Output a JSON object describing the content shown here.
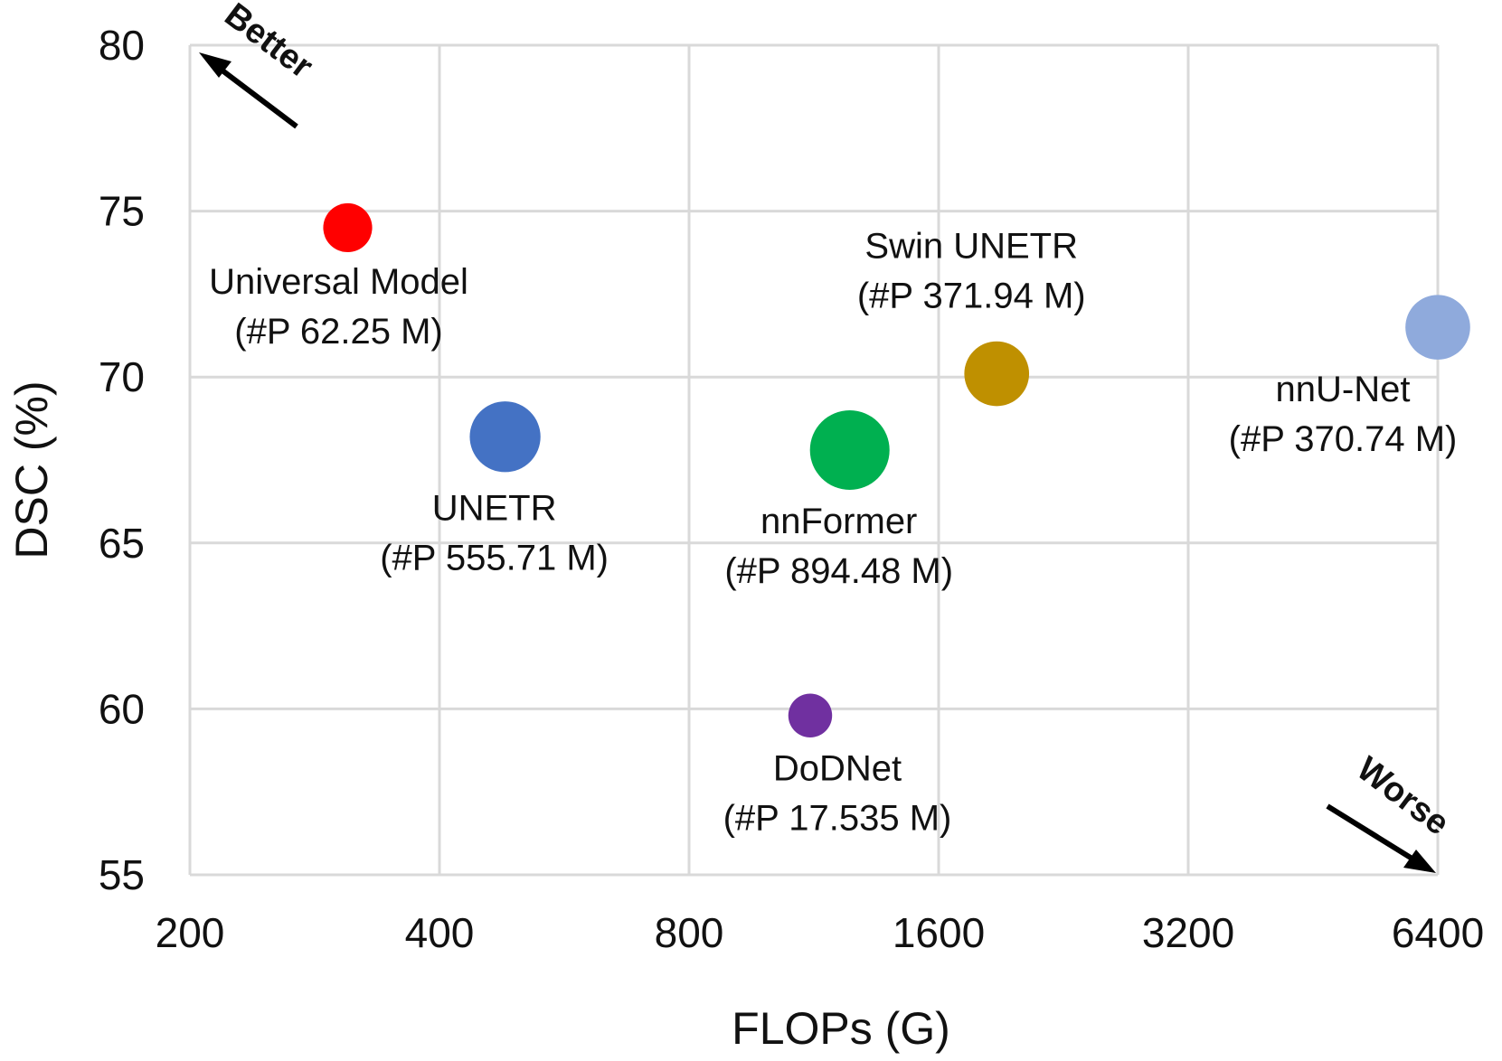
{
  "chart_data": {
    "type": "scatter",
    "title": "",
    "xlabel": "FLOPs (G)",
    "ylabel": "DSC (%)",
    "x_scale": "log2",
    "xlim": [
      200,
      6400
    ],
    "ylim": [
      55,
      80
    ],
    "x_ticks": [
      200,
      400,
      800,
      1600,
      3200,
      6400
    ],
    "y_ticks": [
      55,
      60,
      65,
      70,
      75,
      80
    ],
    "x_tick_labels": [
      "200",
      "400",
      "800",
      "1600",
      "3200",
      "6400"
    ],
    "y_tick_labels": [
      "55",
      "60",
      "65",
      "70",
      "75",
      "80"
    ],
    "grid": true,
    "bubble_size": "parameters (#P)",
    "points": [
      {
        "name": "Universal Model",
        "params": "(#P 62.25 M)",
        "params_m": 62.25,
        "x": 310,
        "y": 74.5,
        "color": "#ff0000"
      },
      {
        "name": "UNETR",
        "params": "(#P 555.71 M)",
        "params_m": 555.71,
        "x": 480,
        "y": 68.2,
        "color": "#4472c4"
      },
      {
        "name": "nnFormer",
        "params": "(#P 894.48 M)",
        "params_m": 894.48,
        "x": 1250,
        "y": 67.8,
        "color": "#00b050"
      },
      {
        "name": "Swin UNETR",
        "params": "(#P 371.94 M)",
        "params_m": 371.94,
        "x": 1880,
        "y": 70.1,
        "color": "#bf9000"
      },
      {
        "name": "nnU-Net",
        "params": "(#P 370.74 M)",
        "params_m": 370.74,
        "x": 6400,
        "y": 71.5,
        "color": "#8faadc"
      },
      {
        "name": "DoDNet",
        "params": "(#P 17.535 M)",
        "params_m": 17.535,
        "x": 1120,
        "y": 59.8,
        "color": "#7030a0"
      }
    ],
    "annotations": [
      {
        "text": "Better",
        "direction": "top-left"
      },
      {
        "text": "Worse",
        "direction": "bottom-right"
      }
    ]
  }
}
